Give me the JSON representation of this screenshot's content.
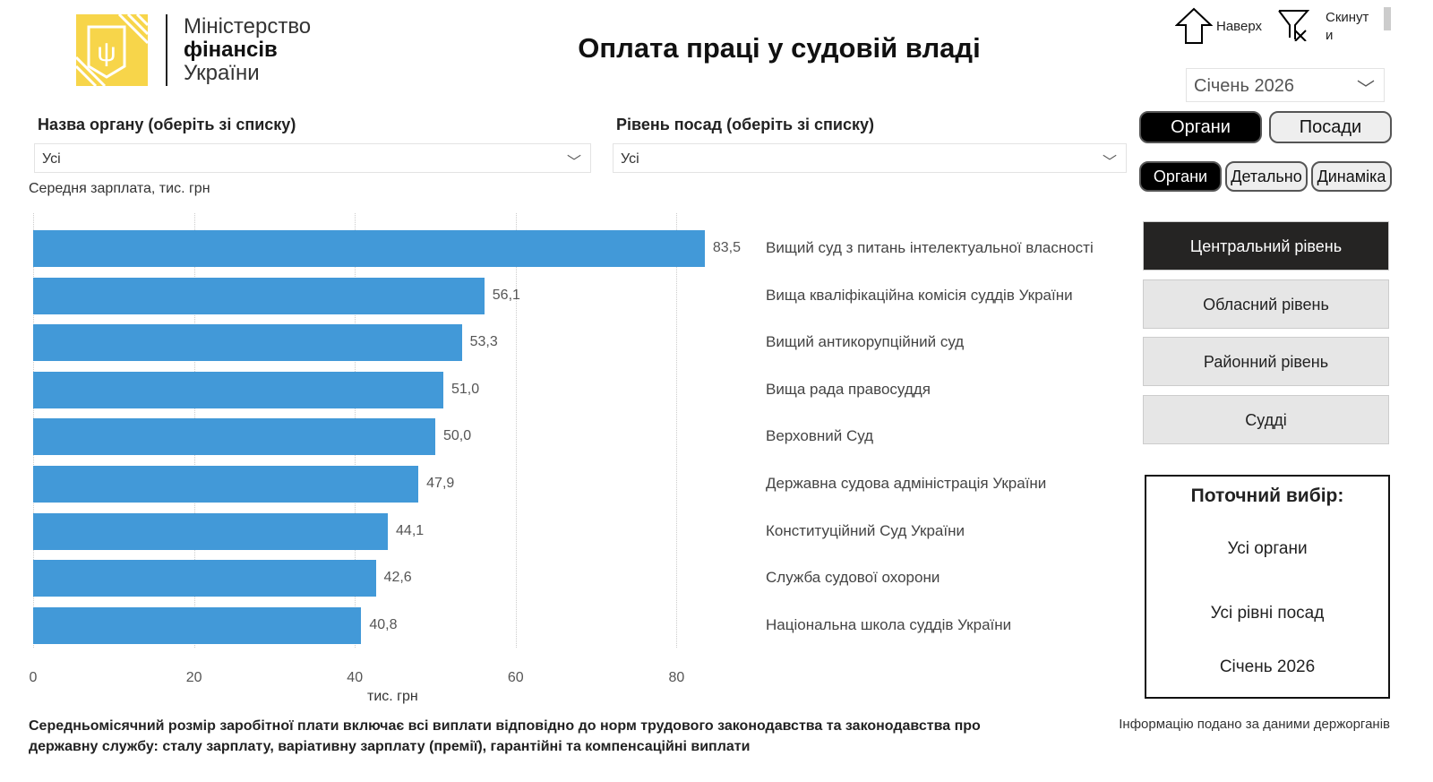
{
  "header": {
    "logo_line1": "Міністерство",
    "logo_line2": "фінансів",
    "logo_line3": "України",
    "title": "Оплата праці у судовій владі",
    "up_label": "Наверх",
    "reset_label": "Скинут и"
  },
  "filters": {
    "organ_label": "Назва органу (оберіть зі списку)",
    "organ_value": "Усі",
    "level_label": "Рівень посад (оберіть зі списку)",
    "level_value": "Усі",
    "period_value": "Січень 2026"
  },
  "toggles": {
    "main": [
      "Органи",
      "Посади"
    ],
    "sub": [
      "Органи",
      "Детально",
      "Динаміка"
    ]
  },
  "levels": [
    "Центральний рівень",
    "Обласний рівень",
    "Районний рівень",
    "Судді"
  ],
  "current": {
    "title": "Поточний вибір:",
    "organs": "Усі органи",
    "levels": "Усі рівні посад",
    "period": "Січень 2026"
  },
  "footer": {
    "note": "Середньомісячний розмір заробітної плати включає всі виплати відповідно до норм трудового законодавства та законодавства про державну службу: сталу зарплату, варіативну зарплату (премії), гарантійні та компенсаційні виплати",
    "source": "Інформацію подано за даними держорганів"
  },
  "colors": {
    "bar": "#4299d8",
    "active": "#252423"
  },
  "chart_data": {
    "type": "bar",
    "orientation": "horizontal",
    "title": "Середня зарплата, тис. грн",
    "xlabel": "тис. грн",
    "xlim": [
      0,
      90
    ],
    "xticks": [
      "0",
      "20",
      "40",
      "60",
      "80"
    ],
    "categories": [
      "Вищий суд з питань інтелектуальної власності",
      "Вища кваліфікаційна комісія суддів України",
      "Вищий антикорупційний суд",
      "Вища рада правосуддя",
      "Верховний Суд",
      "Державна судова адміністрація України",
      "Конституційний Суд України",
      "Служба судової охорони",
      "Національна школа суддів України"
    ],
    "values": [
      83.5,
      56.1,
      53.3,
      51.0,
      50.0,
      47.9,
      44.1,
      42.6,
      40.8
    ],
    "labels": [
      "83,5",
      "56,1",
      "53,3",
      "51,0",
      "50,0",
      "47,9",
      "44,1",
      "42,6",
      "40,8"
    ]
  }
}
